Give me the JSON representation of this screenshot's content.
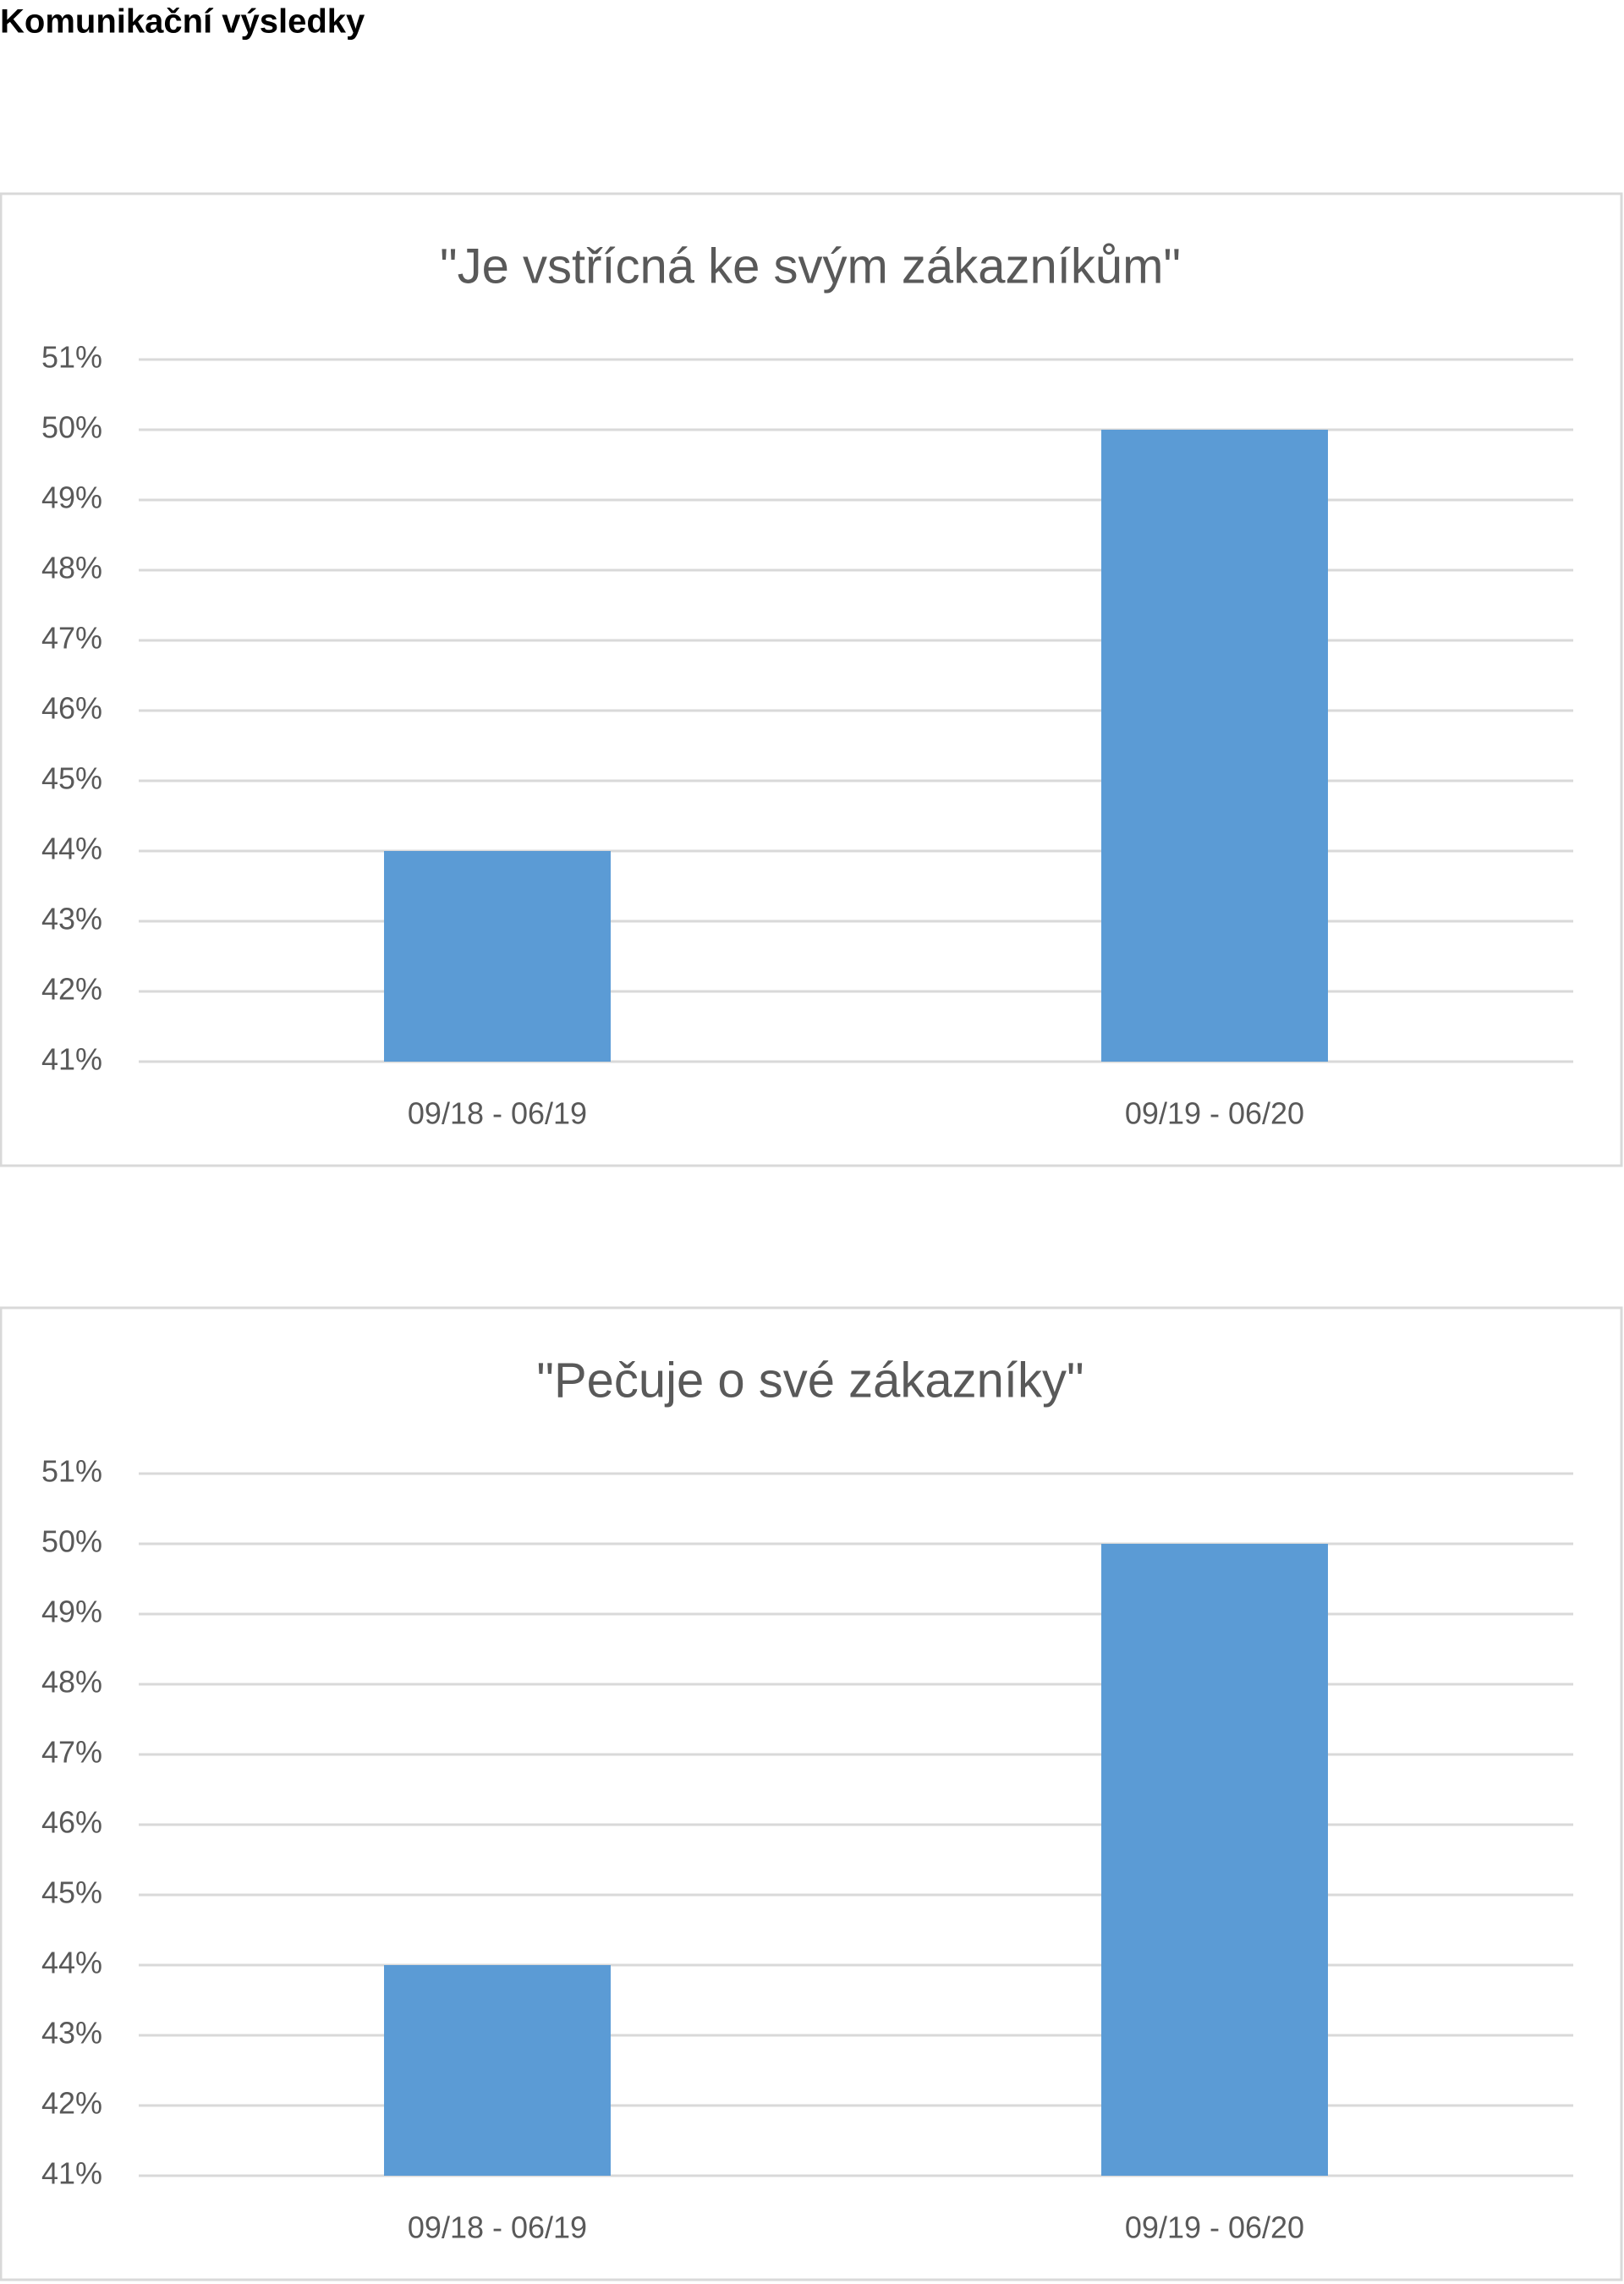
{
  "heading": "Komunikační výsledky",
  "chart_data": [
    {
      "type": "bar",
      "title": "\"Je vstřícná ke svým zákazníkům\"",
      "categories": [
        "09/18 - 06/19",
        "09/19 - 06/20"
      ],
      "values": [
        44,
        50
      ],
      "color": "#5b9bd5",
      "ylim": [
        41,
        51
      ],
      "yticks": [
        {
          "value": 41,
          "label": "41%"
        },
        {
          "value": 42,
          "label": "42%"
        },
        {
          "value": 43,
          "label": "43%"
        },
        {
          "value": 44,
          "label": "44%"
        },
        {
          "value": 45,
          "label": "45%"
        },
        {
          "value": 46,
          "label": "46%"
        },
        {
          "value": 47,
          "label": "47%"
        },
        {
          "value": 48,
          "label": "48%"
        },
        {
          "value": 49,
          "label": "49%"
        },
        {
          "value": 50,
          "label": "50%"
        },
        {
          "value": 51,
          "label": "51%"
        }
      ],
      "grid": true
    },
    {
      "type": "bar",
      "title": "\"Pečuje o své zákazníky\"",
      "categories": [
        "09/18 - 06/19",
        "09/19 - 06/20"
      ],
      "values": [
        44,
        50
      ],
      "color": "#5b9bd5",
      "ylim": [
        41,
        51
      ],
      "yticks": [
        {
          "value": 41,
          "label": "41%"
        },
        {
          "value": 42,
          "label": "42%"
        },
        {
          "value": 43,
          "label": "43%"
        },
        {
          "value": 44,
          "label": "44%"
        },
        {
          "value": 45,
          "label": "45%"
        },
        {
          "value": 46,
          "label": "46%"
        },
        {
          "value": 47,
          "label": "47%"
        },
        {
          "value": 48,
          "label": "48%"
        },
        {
          "value": 49,
          "label": "49%"
        },
        {
          "value": 50,
          "label": "50%"
        },
        {
          "value": 51,
          "label": "51%"
        }
      ],
      "grid": true
    }
  ]
}
